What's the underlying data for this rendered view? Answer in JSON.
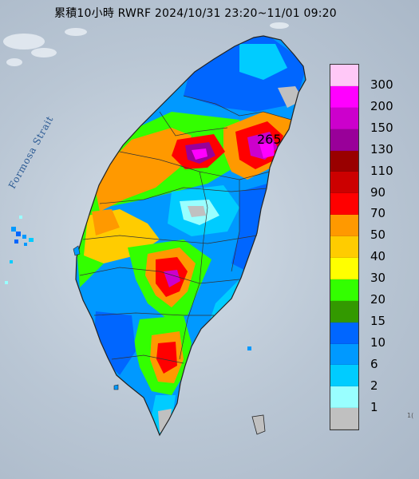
{
  "title": "累積10小時 RWRF 2024/10/31 23:20~11/01 09:20",
  "strait_label": "Formosa Strait",
  "max_value": "265",
  "corner_text": "1(",
  "legend": [
    {
      "label": "300",
      "color": "#ffc8f7"
    },
    {
      "label": "200",
      "color": "#ff00ff"
    },
    {
      "label": "150",
      "color": "#cc00cc"
    },
    {
      "label": "130",
      "color": "#990099"
    },
    {
      "label": "110",
      "color": "#990000"
    },
    {
      "label": "90",
      "color": "#cc0000"
    },
    {
      "label": "70",
      "color": "#ff0000"
    },
    {
      "label": "50",
      "color": "#ff9900"
    },
    {
      "label": "40",
      "color": "#ffcc00"
    },
    {
      "label": "30",
      "color": "#ffff00"
    },
    {
      "label": "20",
      "color": "#33ff00"
    },
    {
      "label": "15",
      "color": "#339900"
    },
    {
      "label": "10",
      "color": "#0066ff"
    },
    {
      "label": "6",
      "color": "#0099ff"
    },
    {
      "label": "2",
      "color": "#00ccff"
    },
    {
      "label": "1",
      "color": "#99ffff"
    },
    {
      "label": "",
      "color": "#c0c0c0"
    }
  ]
}
